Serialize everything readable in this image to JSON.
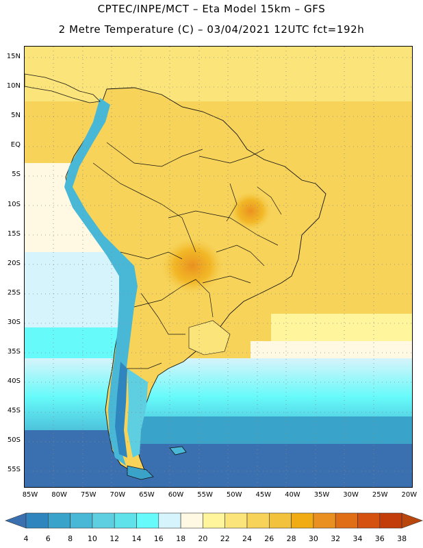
{
  "title": {
    "line1": "CPTEC/INPE/MCT –  Eta Model 15km – GFS",
    "line2": "2 Metre Temperature (C) – 03/04/2021 12UTC fct=192h"
  },
  "map": {
    "lat_ticks": [
      "15N",
      "10N",
      "5N",
      "EQ",
      "5S",
      "10S",
      "15S",
      "20S",
      "25S",
      "30S",
      "35S",
      "40S",
      "45S",
      "50S",
      "55S"
    ],
    "lon_ticks": [
      "85W",
      "80W",
      "75W",
      "70W",
      "65W",
      "60W",
      "55W",
      "50W",
      "45W",
      "40W",
      "35W",
      "30W",
      "25W",
      "20W"
    ]
  },
  "legend": {
    "labels": [
      "4",
      "6",
      "8",
      "10",
      "12",
      "14",
      "16",
      "18",
      "20",
      "22",
      "24",
      "26",
      "28",
      "30",
      "32",
      "34",
      "36",
      "38"
    ],
    "colors": [
      "#3a6fb0",
      "#2f86be",
      "#3aa3c9",
      "#48b8d6",
      "#5ecfe0",
      "#5fe2ea",
      "#66fafa",
      "#d6f4fb",
      "#fff9e3",
      "#fef59c",
      "#fbe47a",
      "#f7d359",
      "#f2c23c",
      "#f0ac12",
      "#ea9020",
      "#e06e16",
      "#d5510f",
      "#c23d0a",
      "#b8460d"
    ]
  }
}
